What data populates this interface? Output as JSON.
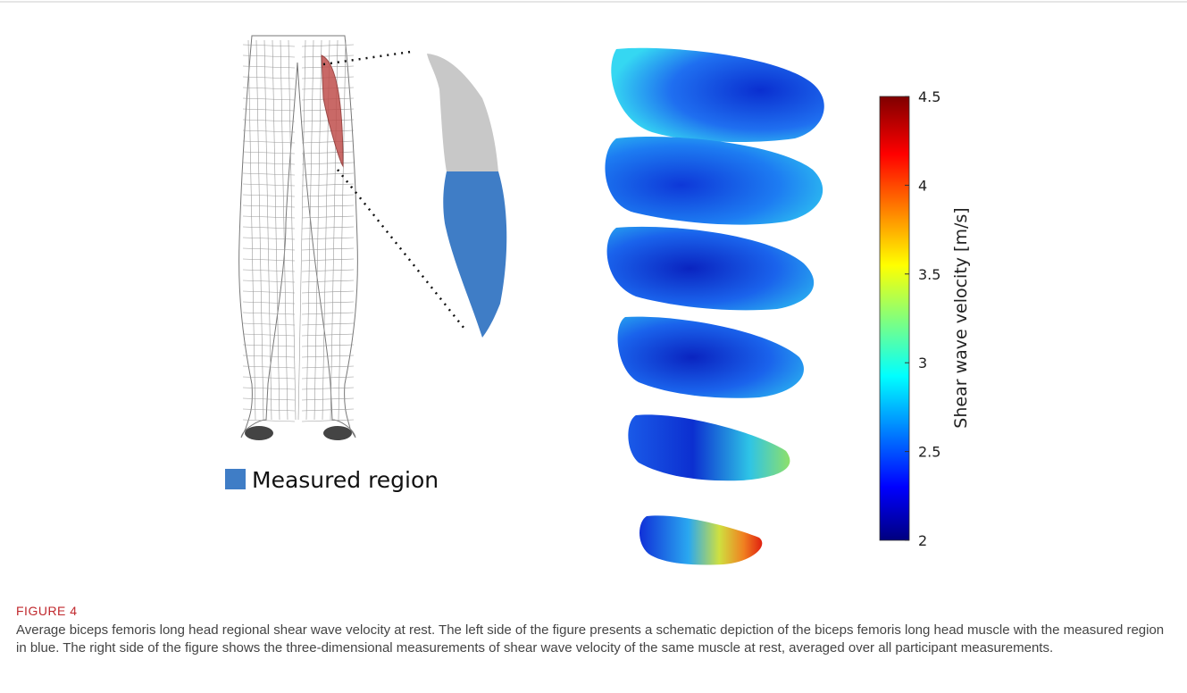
{
  "figure": {
    "legend_label": "Measured region",
    "colorbar": {
      "label": "Shear wave velocity [m/s]",
      "lim": [
        2,
        4.5
      ],
      "ticks": [
        2,
        2.5,
        3,
        3.5,
        4,
        4.5
      ]
    }
  },
  "caption": {
    "label": "FIGURE 4",
    "text": "Average biceps femoris long head regional shear wave velocity at rest. The left side of the figure presents a schematic depiction of the biceps femoris long head muscle with the measured region in blue. The right side of the figure shows the three-dimensional measurements of shear wave velocity of the same muscle at rest, averaged over all participant measurements."
  }
}
